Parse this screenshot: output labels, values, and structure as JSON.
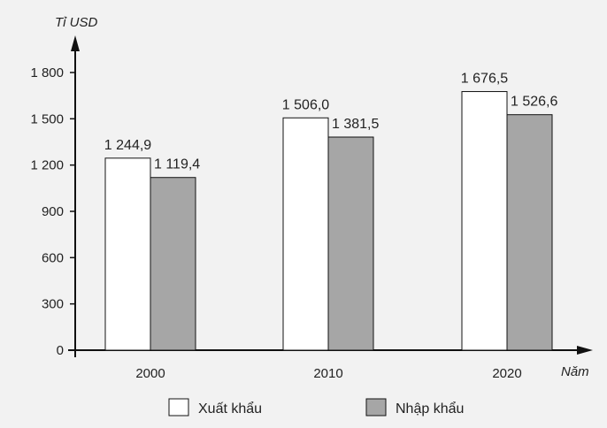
{
  "chart_data": {
    "type": "bar",
    "categories": [
      "2000",
      "2010",
      "2020"
    ],
    "series": [
      {
        "name": "Xuất khẩu",
        "values": [
          1244.9,
          1506.0,
          1676.5
        ],
        "labels": [
          "1 244,9",
          "1 506,0",
          "1 676,5"
        ],
        "color": "#ffffff"
      },
      {
        "name": "Nhập khẩu",
        "values": [
          1119.4,
          1381.5,
          1526.6
        ],
        "labels": [
          "1 119,4",
          "1 381,5",
          "1 526,6"
        ],
        "color": "#a6a6a6"
      }
    ],
    "ylabel": "Tỉ USD",
    "xlabel": "Năm",
    "ylim": [
      0,
      1800
    ],
    "yticks": [
      0,
      300,
      600,
      900,
      1200,
      1500,
      1800
    ],
    "ytick_labels": [
      "0",
      "300",
      "600",
      "900",
      "1 200",
      "1 500",
      "1 800"
    ],
    "legend_position": "bottom",
    "grid": false
  }
}
